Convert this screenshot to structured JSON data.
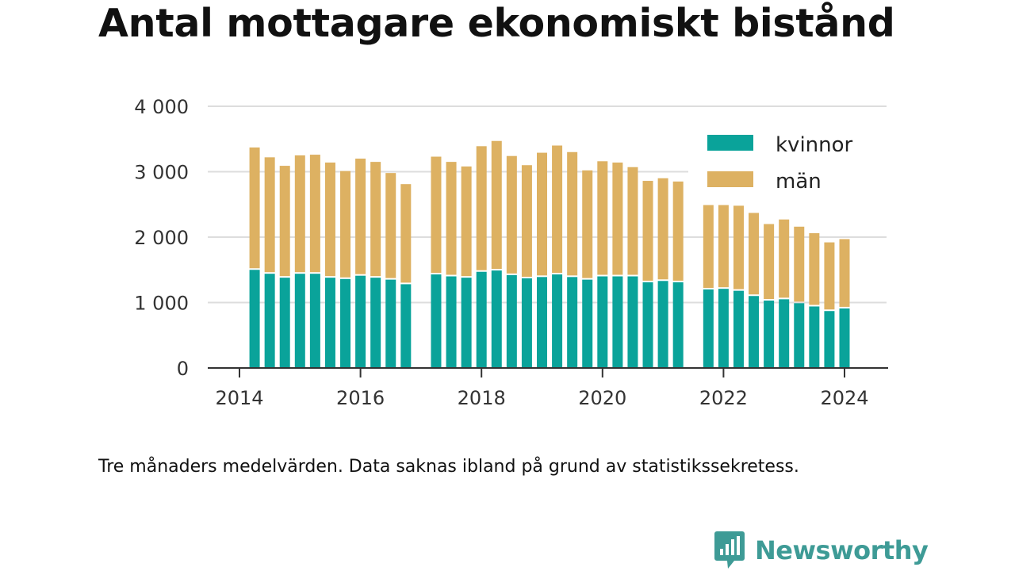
{
  "title": "Antal mottagare ekonomiskt bistånd",
  "note": "Tre månaders medelvärden. Data saknas ibland på grund av statistikssekretess.",
  "brand": "Newsworthy",
  "colors": {
    "kvinnor": "#0aa39a",
    "man": "#ddb162",
    "logo": "#3e9b96"
  },
  "chart_data": {
    "type": "bar",
    "stacked": true,
    "title": "Antal mottagare ekonomiskt bistånd",
    "xlim": [
      2014,
      2024.5
    ],
    "ylim": [
      0,
      4000
    ],
    "yticks": [
      0,
      1000,
      2000,
      3000,
      4000
    ],
    "ytick_labels": [
      "0",
      "1 000",
      "2 000",
      "3 000",
      "4 000"
    ],
    "xticks": [
      2014,
      2016,
      2018,
      2020,
      2022,
      2024
    ],
    "xtick_labels": [
      "2014",
      "2016",
      "2018",
      "2020",
      "2022",
      "2024"
    ],
    "grid": true,
    "legend_position": "top-right",
    "x": [
      2014.25,
      2014.5,
      2014.75,
      2015.0,
      2015.25,
      2015.5,
      2015.75,
      2016.0,
      2016.25,
      2016.5,
      2016.75,
      2017.25,
      2017.5,
      2017.75,
      2018.0,
      2018.25,
      2018.5,
      2018.75,
      2019.0,
      2019.25,
      2019.5,
      2019.75,
      2020.0,
      2020.25,
      2020.5,
      2020.75,
      2021.0,
      2021.25,
      2021.75,
      2022.0,
      2022.25,
      2022.5,
      2022.75,
      2023.0,
      2023.25,
      2023.5,
      2023.75,
      2024.0
    ],
    "series": [
      {
        "name": "kvinnor",
        "values": [
          1500,
          1440,
          1380,
          1440,
          1440,
          1380,
          1360,
          1410,
          1380,
          1350,
          1280,
          1430,
          1400,
          1380,
          1470,
          1490,
          1420,
          1370,
          1390,
          1430,
          1390,
          1350,
          1400,
          1400,
          1400,
          1310,
          1330,
          1310,
          1200,
          1210,
          1180,
          1100,
          1030,
          1050,
          990,
          940,
          870,
          910
        ]
      },
      {
        "name": "män",
        "values": [
          1870,
          1780,
          1710,
          1810,
          1820,
          1760,
          1650,
          1790,
          1770,
          1630,
          1530,
          1800,
          1750,
          1700,
          1920,
          1980,
          1820,
          1730,
          1900,
          1970,
          1910,
          1670,
          1760,
          1740,
          1670,
          1550,
          1570,
          1540,
          1290,
          1280,
          1300,
          1270,
          1170,
          1220,
          1170,
          1120,
          1050,
          1060
        ]
      }
    ]
  }
}
